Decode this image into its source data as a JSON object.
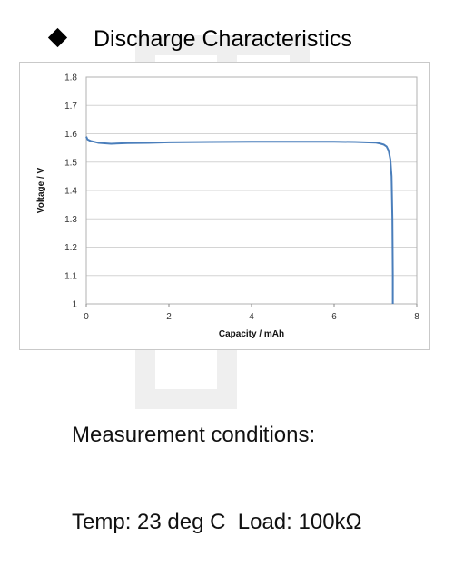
{
  "header": {
    "title": "Discharge Characteristics"
  },
  "chart_data": {
    "type": "line",
    "xlabel": "Capacity / mAh",
    "ylabel": "Voltage / V",
    "xlim": [
      0,
      8
    ],
    "ylim": [
      1.0,
      1.8
    ],
    "x_ticks": [
      0,
      2,
      4,
      6,
      8
    ],
    "y_ticks": [
      1.0,
      1.1,
      1.2,
      1.3,
      1.4,
      1.5,
      1.6,
      1.7,
      1.8
    ],
    "x_tick_labels": [
      "0",
      "2",
      "4",
      "6",
      "8"
    ],
    "y_tick_labels": [
      "1",
      "1.1",
      "1.2",
      "1.3",
      "1.4",
      "1.5",
      "1.6",
      "1.7",
      "1.8"
    ],
    "grid": "horizontal",
    "line_color": "#4a7ebb",
    "series": [
      {
        "x": [
          0.0,
          0.03,
          0.1,
          0.3,
          0.6,
          1.0,
          1.5,
          2.0,
          3.0,
          4.0,
          5.0,
          6.0,
          6.5,
          7.0,
          7.1,
          7.2,
          7.27,
          7.32,
          7.36,
          7.39,
          7.41,
          7.42,
          7.42
        ],
        "y": [
          1.59,
          1.58,
          1.575,
          1.568,
          1.565,
          1.567,
          1.568,
          1.57,
          1.571,
          1.572,
          1.572,
          1.572,
          1.571,
          1.569,
          1.566,
          1.562,
          1.555,
          1.54,
          1.51,
          1.45,
          1.3,
          1.1,
          1.0
        ]
      }
    ]
  },
  "conditions": {
    "line1": "Measurement conditions:",
    "line2": "Temp: 23 deg C  Load: 100kΩ"
  }
}
